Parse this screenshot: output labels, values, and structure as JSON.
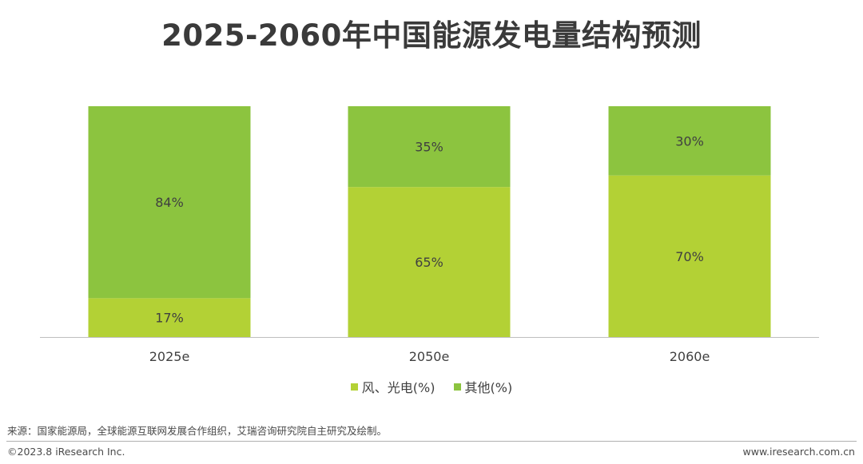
{
  "title": "2025-2060年中国能源发电量结构预测",
  "legend": [
    {
      "label": "风、光电(%)",
      "color": "#b3d135"
    },
    {
      "label": "其他(%)",
      "color": "#8cc43f"
    }
  ],
  "chart_data": {
    "type": "bar",
    "stacked": true,
    "categories": [
      "2025e",
      "2050e",
      "2060e"
    ],
    "series": [
      {
        "name": "风、光电(%)",
        "values": [
          17,
          65,
          70
        ],
        "labels": [
          "17%",
          "65%",
          "70%"
        ],
        "color": "#b3d135"
      },
      {
        "name": "其他(%)",
        "values": [
          84,
          35,
          30
        ],
        "labels": [
          "84%",
          "35%",
          "30%"
        ],
        "color": "#8cc43f"
      }
    ],
    "title": "2025-2060年中国能源发电量结构预测",
    "xlabel": "",
    "ylabel": "",
    "ylim": [
      0,
      100
    ],
    "grid": false,
    "legend_position": "bottom"
  },
  "footer": {
    "source": "来源：国家能源局，全球能源互联网发展合作组织，艾瑞咨询研究院自主研究及绘制。",
    "copyright": "©2023.8 iResearch Inc.",
    "website": "www.iresearch.com.cn"
  }
}
